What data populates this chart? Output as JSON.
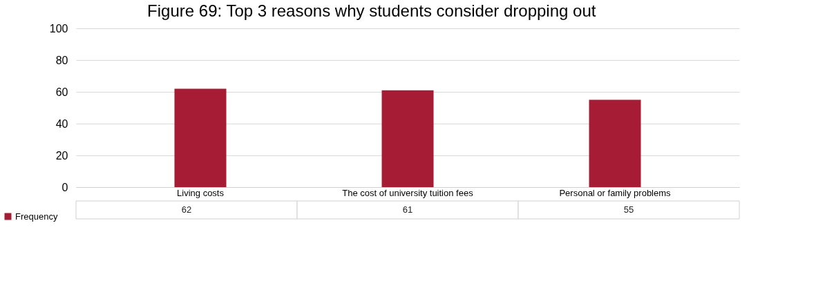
{
  "chart_data": {
    "type": "bar",
    "title": "Figure 69: Top 3 reasons why students consider dropping out",
    "categories": [
      "Living costs",
      "The cost of university tuition fees",
      "Personal or family problems"
    ],
    "series": [
      {
        "name": "Frequency",
        "color": "#a61c34",
        "values": [
          62,
          61,
          55
        ]
      }
    ],
    "ylim": [
      0,
      100
    ],
    "yticks": [
      0,
      20,
      40,
      60,
      80,
      100
    ],
    "grid": "y",
    "legend": "bottom",
    "data_labels": true
  }
}
